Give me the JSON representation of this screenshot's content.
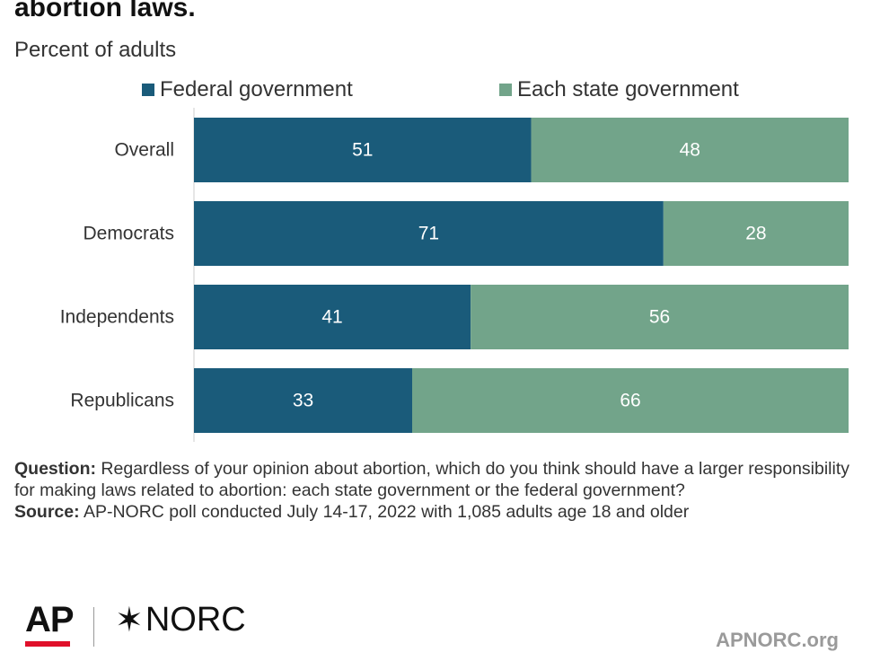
{
  "header": {
    "title": "abortion laws.",
    "subtitle": "Percent of adults"
  },
  "colors": {
    "federal": "#1a5b7a",
    "state": "#72a48a",
    "ap_red": "#e0102a"
  },
  "chart_data": {
    "type": "bar",
    "orientation": "horizontal",
    "stacked": true,
    "categories": [
      "Overall",
      "Democrats",
      "Independents",
      "Republicans"
    ],
    "series": [
      {
        "name": "Federal government",
        "values": [
          51,
          71,
          41,
          33
        ],
        "color": "#1a5b7a"
      },
      {
        "name": "Each state government",
        "values": [
          48,
          28,
          56,
          66
        ],
        "color": "#72a48a"
      }
    ],
    "legend_position": "top",
    "grid": false
  },
  "notes": {
    "question_label": "Question:",
    "question_text": "Regardless of your opinion about abortion, which do you think should have a larger responsibility for making laws related to abortion: each state government or the federal government?",
    "source_label": "Source:",
    "source_text": "AP-NORC poll conducted July 14-17, 2022 with 1,085 adults age 18 and older"
  },
  "footer": {
    "ap_logo": "AP",
    "norc_logo": "NORC",
    "site": "APNORC.org"
  }
}
